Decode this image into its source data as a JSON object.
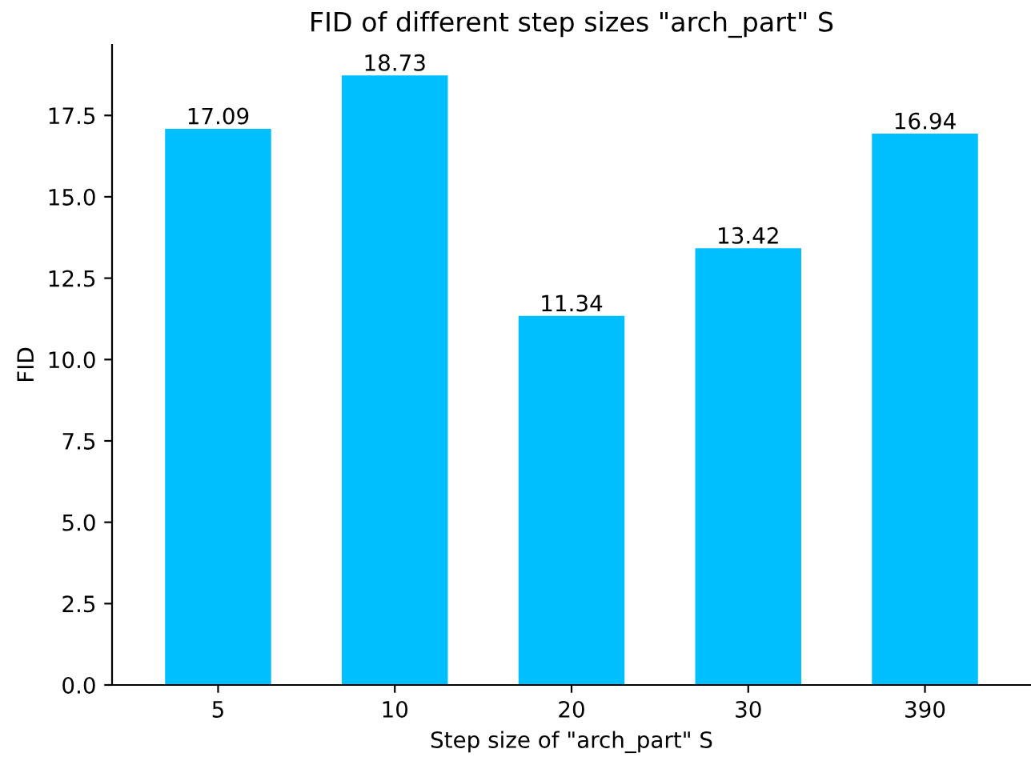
{
  "chart_data": {
    "type": "bar",
    "title": "FID of different step sizes \"arch_part\" S",
    "xlabel": "Step size of \"arch_part\" S",
    "ylabel": "FID",
    "categories": [
      "5",
      "10",
      "20",
      "30",
      "390"
    ],
    "values": [
      17.09,
      18.73,
      11.34,
      13.42,
      16.94
    ],
    "color": "#00bfff",
    "data_labels": true,
    "ylim": [
      0,
      19.67
    ],
    "yticks": [
      {
        "value": 0,
        "label": "0.0"
      },
      {
        "value": 2.5,
        "label": "2.5"
      },
      {
        "value": 5,
        "label": "5.0"
      },
      {
        "value": 7.5,
        "label": "7.5"
      },
      {
        "value": 10,
        "label": "10.0"
      },
      {
        "value": 12.5,
        "label": "12.5"
      },
      {
        "value": 15,
        "label": "15.0"
      },
      {
        "value": 17.5,
        "label": "17.5"
      }
    ],
    "grid": false,
    "legend": false
  }
}
